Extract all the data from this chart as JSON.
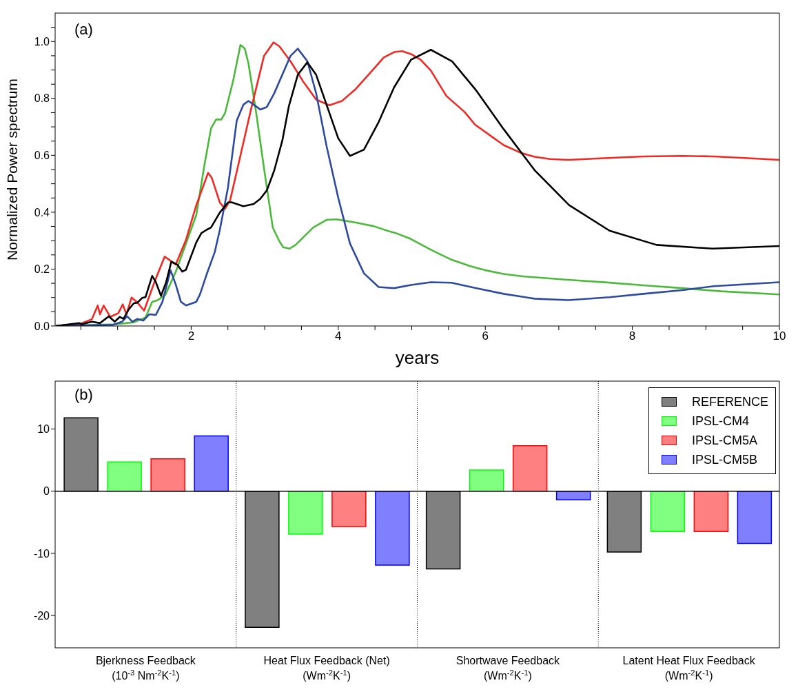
{
  "chart_data": [
    {
      "type": "line",
      "xlabel": "years",
      "ylabel": "Normalized Power spectrum",
      "annotations": [
        "(a)"
      ],
      "xlim": [
        0.15,
        10
      ],
      "ylim": [
        0,
        1.1
      ],
      "xticks": [
        {
          "value": 0.5,
          "label": null
        },
        {
          "value": 1,
          "label": null
        },
        {
          "value": 1.5,
          "label": null
        },
        2,
        {
          "value": 2.5,
          "label": null
        },
        {
          "value": 3,
          "label": null
        },
        {
          "value": 3.5,
          "label": null
        },
        4,
        {
          "value": 4.5,
          "label": null
        },
        {
          "value": 5,
          "label": null
        },
        {
          "value": 5.5,
          "label": null
        },
        6,
        {
          "value": 6.5,
          "label": null
        },
        {
          "value": 7,
          "label": null
        },
        {
          "value": 7.5,
          "label": null
        },
        8,
        {
          "value": 8.5,
          "label": null
        },
        {
          "value": 9,
          "label": null
        },
        {
          "value": 9.5,
          "label": null
        },
        10
      ],
      "yticks": [
        {
          "value": 0,
          "label": "0.0"
        },
        {
          "value": 0.05,
          "label": null
        },
        {
          "value": 0.1,
          "label": null
        },
        {
          "value": 0.15,
          "label": null
        },
        {
          "value": 0.2,
          "label": "0.2"
        },
        {
          "value": 0.25,
          "label": null
        },
        {
          "value": 0.3,
          "label": null
        },
        {
          "value": 0.35,
          "label": null
        },
        {
          "value": 0.4,
          "label": "0.4"
        },
        {
          "value": 0.45,
          "label": null
        },
        {
          "value": 0.5,
          "label": null
        },
        {
          "value": 0.55,
          "label": null
        },
        {
          "value": 0.6,
          "label": "0.6"
        },
        {
          "value": 0.65,
          "label": null
        },
        {
          "value": 0.7,
          "label": null
        },
        {
          "value": 0.75,
          "label": null
        },
        {
          "value": 0.8,
          "label": "0.8"
        },
        {
          "value": 0.85,
          "label": null
        },
        {
          "value": 0.9,
          "label": null
        },
        {
          "value": 0.95,
          "label": null
        },
        {
          "value": 1,
          "label": "1.0"
        },
        {
          "value": 1.05,
          "label": null
        }
      ],
      "marker": "none",
      "line_style": "solid",
      "series": [
        {
          "color": "#4cb83c",
          "x": [
            0.16,
            0.97,
            1.22,
            1.38,
            1.47,
            1.54,
            1.65,
            1.79,
            1.93,
            2.07,
            2.18,
            2.27,
            2.34,
            2.41,
            2.46,
            2.57,
            2.67,
            2.73,
            2.78,
            2.88,
            2.99,
            3.11,
            3.2,
            3.25,
            3.34,
            3.42,
            3.66,
            3.84,
            3.98,
            4.23,
            4.48,
            4.69,
            4.8,
            4.98,
            5.26,
            5.54,
            5.79,
            6.0,
            6.25,
            6.53,
            7.09,
            7.66,
            8.15,
            8.68,
            9.21,
            10.0
          ],
          "values": [
            0,
            0.006,
            0.013,
            0.03,
            0.085,
            0.09,
            0.11,
            0.19,
            0.29,
            0.39,
            0.565,
            0.695,
            0.726,
            0.726,
            0.748,
            0.861,
            0.988,
            0.975,
            0.922,
            0.757,
            0.556,
            0.346,
            0.298,
            0.277,
            0.272,
            0.285,
            0.346,
            0.373,
            0.375,
            0.364,
            0.351,
            0.333,
            0.325,
            0.307,
            0.268,
            0.233,
            0.211,
            0.196,
            0.183,
            0.174,
            0.163,
            0.153,
            0.143,
            0.133,
            0.122,
            0.111
          ]
        },
        {
          "color": "#ee2a24",
          "x": [
            0.16,
            0.51,
            0.65,
            0.73,
            0.76,
            0.81,
            0.9,
            1.01,
            1.07,
            1.12,
            1.19,
            1.26,
            1.36,
            1.5,
            1.64,
            1.79,
            1.93,
            2.07,
            2.23,
            2.28,
            2.39,
            2.46,
            2.53,
            2.64,
            2.81,
            2.99,
            3.12,
            3.2,
            3.35,
            3.52,
            3.7,
            3.88,
            4.05,
            4.23,
            4.41,
            4.62,
            4.76,
            4.87,
            4.99,
            5.12,
            5.26,
            5.47,
            5.72,
            5.86,
            6.07,
            6.25,
            6.49,
            6.67,
            6.88,
            7.13,
            7.62,
            8.15,
            8.68,
            9.11,
            9.57,
            10.0
          ],
          "values": [
            0,
            0.009,
            0.024,
            0.072,
            0.041,
            0.072,
            0.032,
            0.045,
            0.076,
            0.041,
            0.1,
            0.085,
            0.054,
            0.154,
            0.244,
            0.216,
            0.303,
            0.425,
            0.538,
            0.521,
            0.434,
            0.412,
            0.442,
            0.565,
            0.757,
            0.949,
            0.997,
            0.983,
            0.931,
            0.861,
            0.796,
            0.776,
            0.791,
            0.831,
            0.883,
            0.944,
            0.963,
            0.966,
            0.956,
            0.936,
            0.898,
            0.809,
            0.752,
            0.708,
            0.669,
            0.636,
            0.608,
            0.595,
            0.587,
            0.584,
            0.59,
            0.596,
            0.598,
            0.596,
            0.59,
            0.584
          ]
        },
        {
          "color": "#2e4a9e",
          "x": [
            0.16,
            0.94,
            1.06,
            1.13,
            1.2,
            1.27,
            1.35,
            1.43,
            1.52,
            1.61,
            1.72,
            1.79,
            1.86,
            1.93,
            2.07,
            2.12,
            2.21,
            2.32,
            2.39,
            2.5,
            2.62,
            2.71,
            2.78,
            2.85,
            2.94,
            3.03,
            3.13,
            3.35,
            3.45,
            3.58,
            3.7,
            3.84,
            4.0,
            4.16,
            4.35,
            4.55,
            4.76,
            4.99,
            5.26,
            5.54,
            5.86,
            6.25,
            6.67,
            7.13,
            7.69,
            8.15,
            8.68,
            9.11,
            10.0
          ],
          "values": [
            0,
            0.004,
            0.015,
            0.034,
            0.015,
            0.025,
            0.019,
            0.041,
            0.039,
            0.085,
            0.196,
            0.146,
            0.085,
            0.072,
            0.085,
            0.111,
            0.181,
            0.259,
            0.338,
            0.486,
            0.722,
            0.778,
            0.791,
            0.778,
            0.761,
            0.77,
            0.818,
            0.949,
            0.975,
            0.931,
            0.818,
            0.634,
            0.451,
            0.29,
            0.185,
            0.137,
            0.133,
            0.144,
            0.154,
            0.152,
            0.134,
            0.113,
            0.096,
            0.091,
            0.101,
            0.113,
            0.126,
            0.14,
            0.154
          ]
        },
        {
          "color": "#000000",
          "x": [
            0.16,
            0.48,
            0.51,
            0.65,
            0.76,
            0.88,
            0.96,
            1.03,
            1.08,
            1.15,
            1.22,
            1.27,
            1.33,
            1.38,
            1.47,
            1.52,
            1.59,
            1.66,
            1.73,
            1.81,
            1.88,
            1.93,
            2.07,
            2.14,
            2.21,
            2.27,
            2.39,
            2.5,
            2.55,
            2.71,
            2.85,
            2.94,
            3.03,
            3.13,
            3.24,
            3.33,
            3.45,
            3.58,
            3.7,
            4.0,
            4.16,
            4.35,
            4.55,
            4.76,
            4.99,
            5.26,
            5.55,
            5.88,
            6.25,
            6.67,
            7.14,
            7.69,
            8.33,
            9.09,
            10.0
          ],
          "values": [
            0,
            0.01,
            0.006,
            0.015,
            0.01,
            0.034,
            0.015,
            0.032,
            0.025,
            0.058,
            0.08,
            0.082,
            0.098,
            0.102,
            0.176,
            0.154,
            0.106,
            0.154,
            0.226,
            0.216,
            0.191,
            0.198,
            0.294,
            0.327,
            0.338,
            0.346,
            0.399,
            0.434,
            0.435,
            0.421,
            0.429,
            0.447,
            0.477,
            0.547,
            0.652,
            0.774,
            0.883,
            0.927,
            0.883,
            0.66,
            0.598,
            0.62,
            0.717,
            0.839,
            0.936,
            0.971,
            0.93,
            0.827,
            0.692,
            0.548,
            0.425,
            0.335,
            0.285,
            0.272,
            0.281
          ]
        }
      ]
    },
    {
      "type": "bar",
      "annotations": [
        "(b)"
      ],
      "categories": [
        "Bjerkness Feedback\n(10$^{-3}$ Nm$^{-2}$K$^{-1}$)",
        "Heat Flux Feedback (Net)\n(Wm$^{-2}$K$^{-1}$)",
        "Shortwave Feedback\n(Wm$^{-2}$K$^{-1}$)",
        "Latent Heat Flux Feedback\n(Wm$^{-2}$K$^{-1}$)"
      ],
      "ylim": [
        -25.2,
        17.7
      ],
      "yticks": [
        -20,
        -10,
        0,
        10
      ],
      "grid": "x",
      "legend": "top right",
      "ref_lines": [
        {
          "axis": "y",
          "value": 0,
          "color": "#000000",
          "line_style": "solid"
        }
      ],
      "series": [
        {
          "name": "REFERENCE",
          "color": "#808080",
          "values": [
            11.8,
            -21.9,
            -12.5,
            -9.8
          ]
        },
        {
          "name": "IPSL-CM4",
          "color": "#80ff80",
          "values": [
            4.7,
            -6.9,
            3.4,
            -6.5
          ]
        },
        {
          "name": "IPSL-CM5A",
          "color": "#ff8080",
          "values": [
            5.2,
            -5.7,
            7.3,
            -6.5
          ]
        },
        {
          "name": "IPSL-CM5B",
          "color": "#8080ff",
          "values": [
            8.9,
            -11.9,
            -1.4,
            -8.4
          ]
        }
      ]
    }
  ]
}
